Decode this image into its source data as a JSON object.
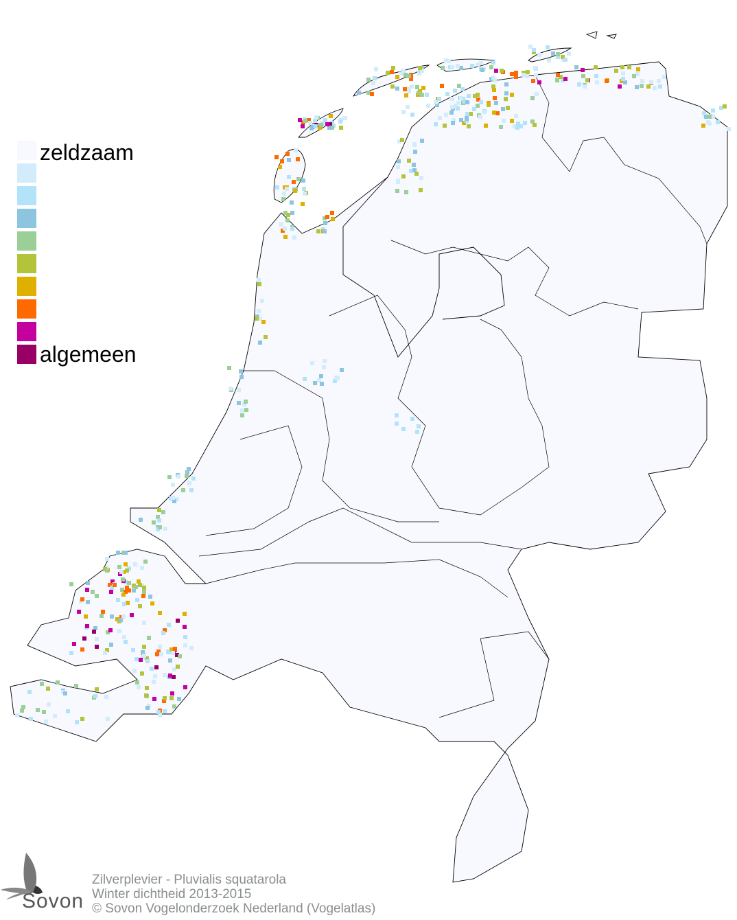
{
  "legend": {
    "label_low": "zeldzaam",
    "label_high": "algemeen",
    "colors": [
      "#f8f8ff",
      "#d3ecfb",
      "#b2e3f9",
      "#8dc5e1",
      "#9bcf98",
      "#b3c43a",
      "#e0b000",
      "#ff6a00",
      "#c4009e",
      "#990066"
    ]
  },
  "caption": {
    "species": "Zilverplevier - Pluvialis squatarola",
    "subtitle": "Winter dichtheid 2013-2015",
    "copyright": "© Sovon Vogelonderzoek Nederland (Vogelatlas)"
  },
  "logo": {
    "text": "Sovon"
  },
  "map": {
    "border_color": "#000000",
    "background_cell_color": "#f8f8ff"
  }
}
